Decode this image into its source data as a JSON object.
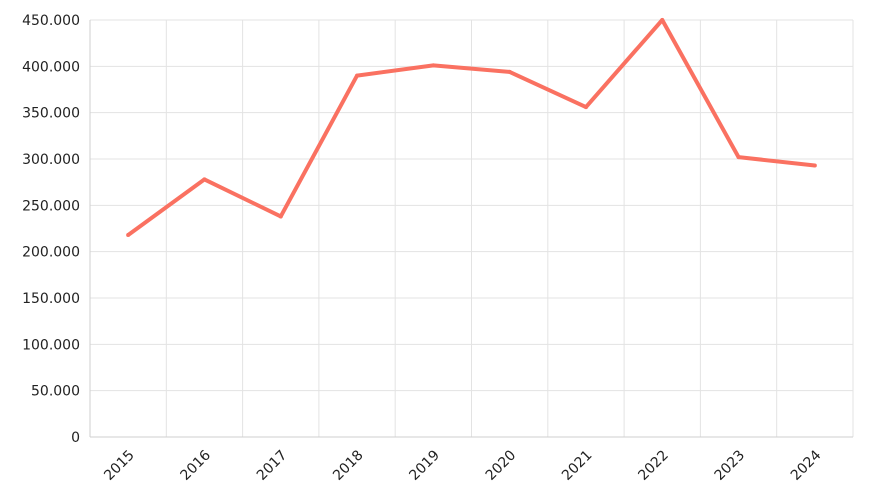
{
  "chart_data": {
    "type": "line",
    "title": "",
    "xlabel": "",
    "ylabel": "",
    "categories": [
      "2015",
      "2016",
      "2017",
      "2018",
      "2019",
      "2020",
      "2021",
      "2022",
      "2023",
      "2024"
    ],
    "series": [
      {
        "values": [
          218000,
          278000,
          238000,
          390000,
          401000,
          394000,
          356000,
          450000,
          302000,
          293000
        ],
        "color": "#FA7161"
      }
    ],
    "ylim": [
      0,
      450000
    ],
    "yticks": [
      0,
      50000,
      100000,
      150000,
      200000,
      250000,
      300000,
      350000,
      400000,
      450000
    ],
    "ytick_labels": [
      "0",
      "50.000",
      "100.000",
      "150.000",
      "200.000",
      "250.000",
      "300.000",
      "350.000",
      "400.000",
      "450.000"
    ],
    "grid": true,
    "grid_color": "#e3e3e3",
    "axis_color": "#cfcfcf",
    "legend": "none"
  }
}
